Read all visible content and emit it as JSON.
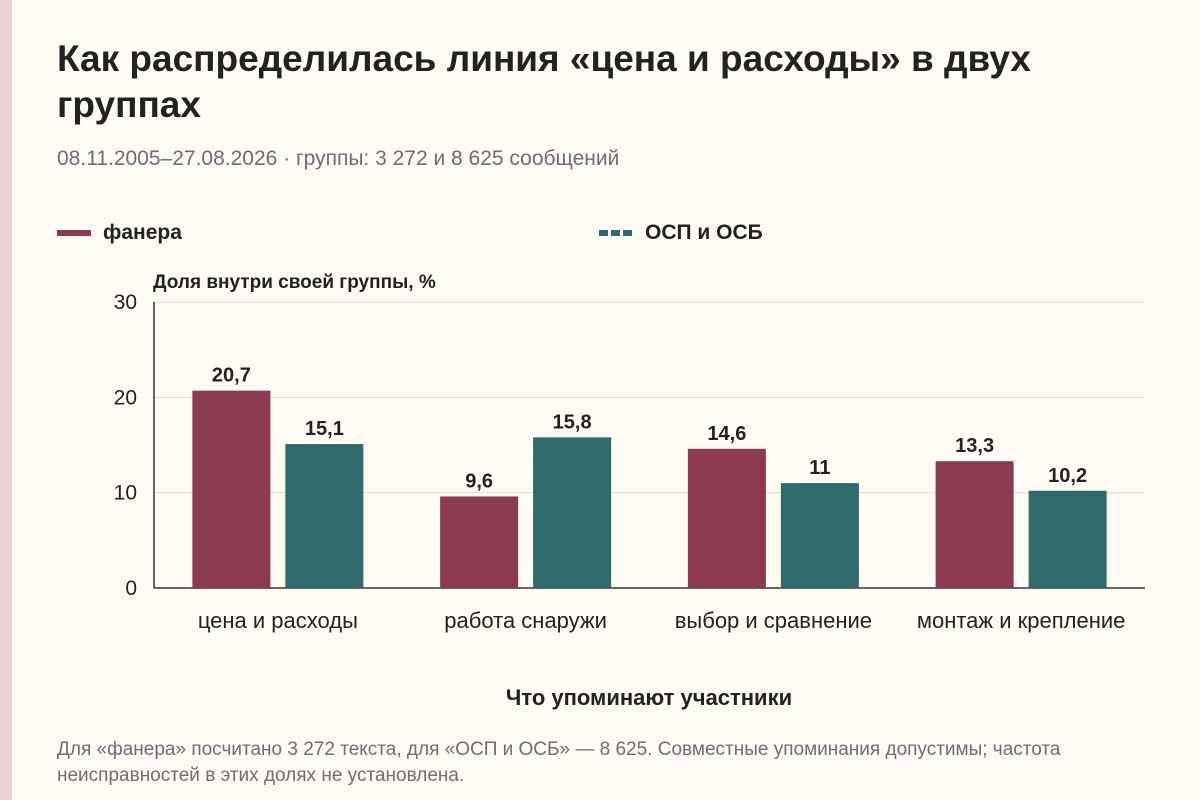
{
  "title": "Как распределилась линия «цена и расходы» в двух группах",
  "subtitle": "08.11.2005–27.08.2026 · группы: 3 272 и 8 625 сообщений",
  "footnote": "Для «фанера» посчитано 3 272 текста, для «ОСП и ОСБ» — 8 625. Совместные упоминания допустимы; частота неисправностей в этих долях не установлена.",
  "colors": {
    "background": "#fdfbf3",
    "series_1": "#8b3a52",
    "series_2": "#2f6b6b",
    "grid": "#dcdcdc",
    "axis": "#333333",
    "muted_text": "#746978"
  },
  "chart_data": {
    "type": "bar",
    "categories": [
      "цена и расходы",
      "работа снаружи",
      "выбор и сравнение",
      "монтаж и крепление"
    ],
    "series": [
      {
        "name": "фанера",
        "values": [
          20.7,
          9.6,
          14.6,
          13.3
        ],
        "value_labels": [
          "20,7",
          "9,6",
          "14,6",
          "13,3"
        ]
      },
      {
        "name": "ОСП и ОСБ",
        "values": [
          15.1,
          15.8,
          11,
          10.2
        ],
        "value_labels": [
          "15,1",
          "15,8",
          "11",
          "10,2"
        ]
      }
    ],
    "ylabel": "Доля внутри своей группы, %",
    "xlabel": "Что упоминают участники",
    "ylim": [
      0,
      30
    ],
    "yticks": [
      0,
      10,
      20,
      30
    ],
    "grid": true,
    "legend_position": "top-left"
  }
}
